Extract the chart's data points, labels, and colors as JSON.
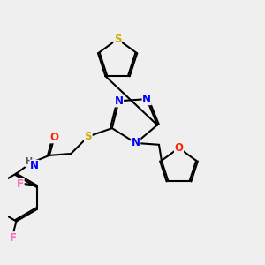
{
  "bg_color": "#efefef",
  "atom_colors": {
    "N": "#0000ff",
    "S": "#ccaa00",
    "O": "#ff2200",
    "F": "#ff69b4",
    "H": "#555555",
    "C": "#000000"
  },
  "bond_lw": 1.5,
  "font_size": 8.5,
  "bold_atoms": true
}
